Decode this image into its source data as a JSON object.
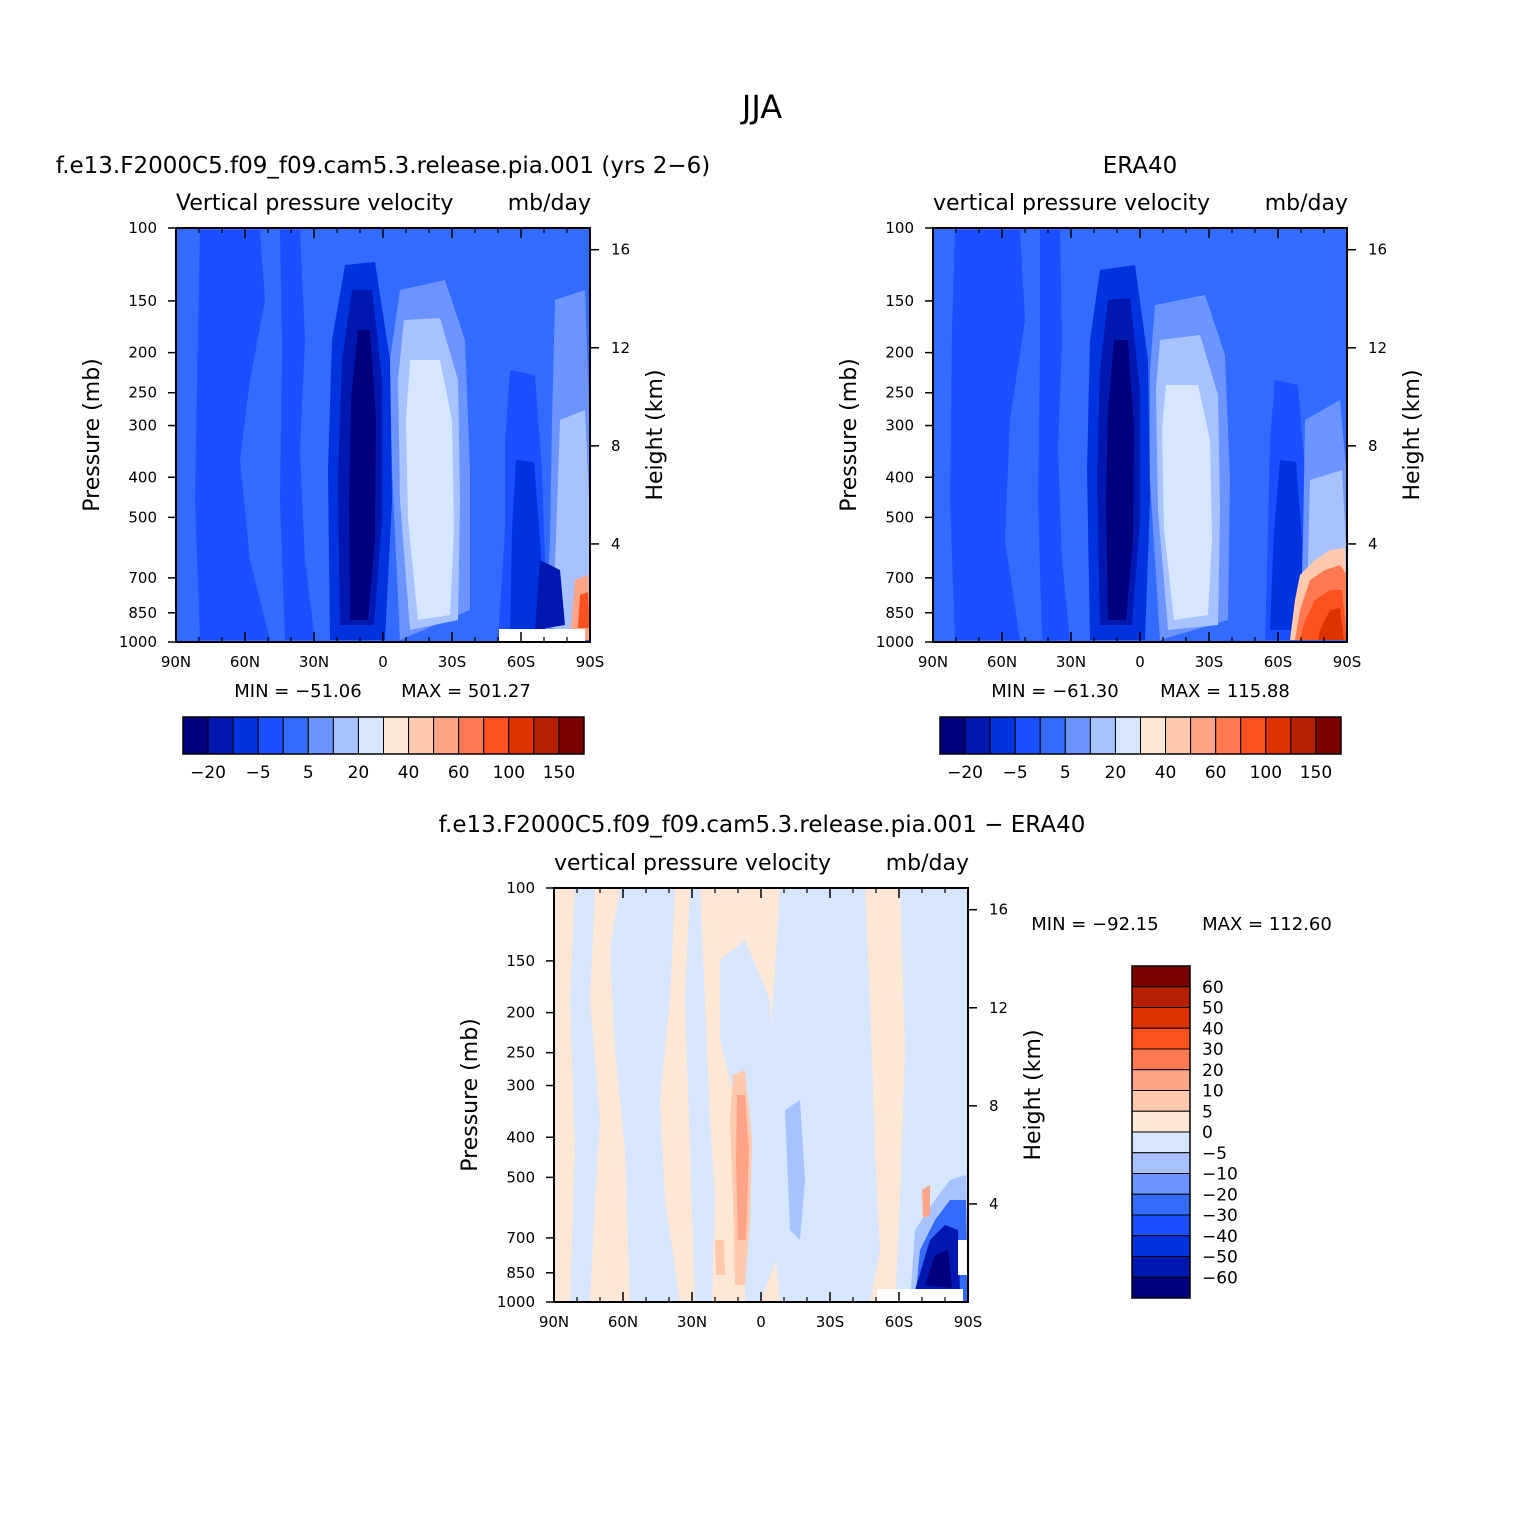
{
  "figure": {
    "title": "JJA"
  },
  "colors": {
    "abs": [
      "#00007f",
      "#0018b0",
      "#0033e0",
      "#1a50ff",
      "#336bff",
      "#6b94ff",
      "#a8c2ff",
      "#d6e6ff",
      "#ffe7d6",
      "#ffc9ae",
      "#ffa487",
      "#ff7a50",
      "#ff5020",
      "#e03200",
      "#b42000",
      "#7c0000"
    ],
    "diff": [
      "#00007f",
      "#0018b0",
      "#0033e0",
      "#1a50ff",
      "#336bff",
      "#6b94ff",
      "#a8c2ff",
      "#d6e6ff",
      "#ffe7d6",
      "#ffc9ae",
      "#ffa487",
      "#ff7a50",
      "#ff5020",
      "#e03200",
      "#b42000",
      "#7c0000"
    ]
  },
  "chart_data": [
    {
      "type": "heatmap",
      "panel": "model",
      "title": "f.e13.F2000C5.f09_f09.cam5.3.release.pia.001 (yrs 2−6)",
      "subtitle_left": "Vertical pressure velocity",
      "subtitle_right": "mb/day",
      "ylabel": "Pressure (mb)",
      "ylabel_right": "Height (km)",
      "x_ticks": [
        "90N",
        "60N",
        "30N",
        "0",
        "30S",
        "60S",
        "90S"
      ],
      "x_values": [
        90,
        60,
        30,
        0,
        -30,
        -60,
        -90
      ],
      "y_ticks": [
        "100",
        "150",
        "200",
        "250",
        "300",
        "400",
        "500",
        "700",
        "850",
        "1000"
      ],
      "y_values": [
        100,
        150,
        200,
        250,
        300,
        400,
        500,
        700,
        850,
        1000
      ],
      "y_right_ticks": [
        "16",
        "12",
        "8",
        "4"
      ],
      "y_right_values": [
        16,
        12,
        8,
        4
      ],
      "min_label": "MIN = −51.06",
      "max_label": "MAX = 501.27",
      "min": -51.06,
      "max": 501.27,
      "colorbar_labels": [
        "−20",
        "−5",
        "5",
        "20",
        "40",
        "60",
        "100",
        "150"
      ],
      "colorbar_levels": [
        -20,
        -5,
        5,
        20,
        40,
        60,
        100,
        150
      ]
    },
    {
      "type": "heatmap",
      "panel": "obs",
      "title": "ERA40",
      "subtitle_left": "vertical pressure velocity",
      "subtitle_right": "mb/day",
      "ylabel": "Pressure (mb)",
      "ylabel_right": "Height (km)",
      "x_ticks": [
        "90N",
        "60N",
        "30N",
        "0",
        "30S",
        "60S",
        "90S"
      ],
      "x_values": [
        90,
        60,
        30,
        0,
        -30,
        -60,
        -90
      ],
      "y_ticks": [
        "100",
        "150",
        "200",
        "250",
        "300",
        "400",
        "500",
        "700",
        "850",
        "1000"
      ],
      "y_values": [
        100,
        150,
        200,
        250,
        300,
        400,
        500,
        700,
        850,
        1000
      ],
      "y_right_ticks": [
        "16",
        "12",
        "8",
        "4"
      ],
      "y_right_values": [
        16,
        12,
        8,
        4
      ],
      "min_label": "MIN = −61.30",
      "max_label": "MAX = 115.88",
      "min": -61.3,
      "max": 115.88,
      "colorbar_labels": [
        "−20",
        "−5",
        "5",
        "20",
        "40",
        "60",
        "100",
        "150"
      ],
      "colorbar_levels": [
        -20,
        -5,
        5,
        20,
        40,
        60,
        100,
        150
      ]
    },
    {
      "type": "heatmap",
      "panel": "diff",
      "title": "f.e13.F2000C5.f09_f09.cam5.3.release.pia.001 − ERA40",
      "subtitle_left": "vertical pressure velocity",
      "subtitle_right": "mb/day",
      "ylabel": "Pressure (mb)",
      "ylabel_right": "Height (km)",
      "x_ticks": [
        "90N",
        "60N",
        "30N",
        "0",
        "30S",
        "60S",
        "90S"
      ],
      "x_values": [
        90,
        60,
        30,
        0,
        -30,
        -60,
        -90
      ],
      "y_ticks": [
        "100",
        "150",
        "200",
        "250",
        "300",
        "400",
        "500",
        "700",
        "850",
        "1000"
      ],
      "y_values": [
        100,
        150,
        200,
        250,
        300,
        400,
        500,
        700,
        850,
        1000
      ],
      "y_right_ticks": [
        "16",
        "12",
        "8",
        "4"
      ],
      "y_right_values": [
        16,
        12,
        8,
        4
      ],
      "min_label": "MIN = −92.15",
      "max_label": "MAX = 112.60",
      "min": -92.15,
      "max": 112.6,
      "colorbar_labels": [
        "60",
        "50",
        "40",
        "30",
        "20",
        "10",
        "5",
        "0",
        "−5",
        "−10",
        "−20",
        "−30",
        "−40",
        "−50",
        "−60"
      ],
      "colorbar_levels": [
        60,
        50,
        40,
        30,
        20,
        10,
        5,
        0,
        -5,
        -10,
        -20,
        -30,
        -40,
        -50,
        -60
      ]
    }
  ]
}
